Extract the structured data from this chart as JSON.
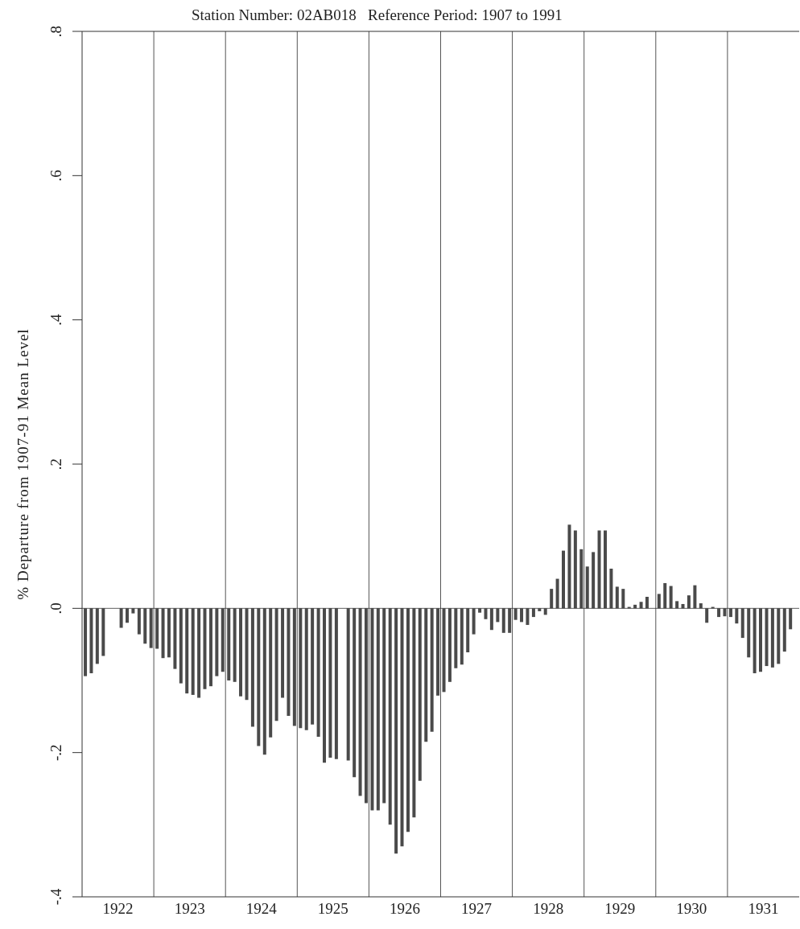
{
  "chart_data": {
    "type": "bar",
    "title": "Station Number: 02AB018   Reference Period: 1907 to 1991",
    "ylabel": "% Departure from 1907-91 Mean Level",
    "x": [
      1922.042,
      1922.125,
      1922.208,
      1922.292,
      1922.375,
      1922.458,
      1922.542,
      1922.625,
      1922.708,
      1922.792,
      1922.875,
      1922.958,
      1923.042,
      1923.125,
      1923.208,
      1923.292,
      1923.375,
      1923.458,
      1923.542,
      1923.625,
      1923.708,
      1923.792,
      1923.875,
      1923.958,
      1924.042,
      1924.125,
      1924.208,
      1924.292,
      1924.375,
      1924.458,
      1924.542,
      1924.625,
      1924.708,
      1924.792,
      1924.875,
      1924.958,
      1925.042,
      1925.125,
      1925.208,
      1925.292,
      1925.375,
      1925.458,
      1925.542,
      1925.625,
      1925.708,
      1925.792,
      1925.875,
      1925.958,
      1926.042,
      1926.125,
      1926.208,
      1926.292,
      1926.375,
      1926.458,
      1926.542,
      1926.625,
      1926.708,
      1926.792,
      1926.875,
      1926.958,
      1927.042,
      1927.125,
      1927.208,
      1927.292,
      1927.375,
      1927.458,
      1927.542,
      1927.625,
      1927.708,
      1927.792,
      1927.875,
      1927.958,
      1928.042,
      1928.125,
      1928.208,
      1928.292,
      1928.375,
      1928.458,
      1928.542,
      1928.625,
      1928.708,
      1928.792,
      1928.875,
      1928.958,
      1929.042,
      1929.125,
      1929.208,
      1929.292,
      1929.375,
      1929.458,
      1929.542,
      1929.625,
      1929.708,
      1929.792,
      1929.875,
      1929.958,
      1930.042,
      1930.125,
      1930.208,
      1930.292,
      1930.375,
      1930.458,
      1930.542,
      1930.625,
      1930.708,
      1930.792,
      1930.875,
      1930.958,
      1931.042,
      1931.125,
      1931.208,
      1931.292,
      1931.375,
      1931.458,
      1931.542,
      1931.625,
      1931.708,
      1931.792,
      1931.875
    ],
    "values": [
      -0.094,
      -0.09,
      -0.077,
      -0.066,
      null,
      null,
      -0.027,
      -0.02,
      -0.007,
      -0.036,
      -0.049,
      -0.055,
      -0.056,
      -0.069,
      -0.068,
      -0.084,
      -0.104,
      -0.118,
      -0.12,
      -0.124,
      -0.112,
      -0.108,
      -0.094,
      -0.088,
      -0.1,
      -0.102,
      -0.122,
      -0.127,
      -0.164,
      -0.191,
      -0.203,
      -0.179,
      -0.156,
      -0.124,
      -0.149,
      -0.163,
      -0.166,
      -0.169,
      -0.161,
      -0.178,
      -0.214,
      -0.207,
      -0.209,
      null,
      -0.211,
      -0.234,
      -0.26,
      -0.27,
      -0.28,
      -0.28,
      -0.27,
      -0.3,
      -0.34,
      -0.33,
      -0.31,
      -0.29,
      -0.239,
      -0.185,
      -0.171,
      -0.121,
      -0.116,
      -0.102,
      -0.083,
      -0.078,
      -0.061,
      -0.036,
      -0.006,
      -0.015,
      -0.03,
      -0.019,
      -0.034,
      -0.034,
      -0.016,
      -0.019,
      -0.023,
      -0.012,
      -0.004,
      -0.009,
      0.027,
      0.041,
      0.08,
      0.116,
      0.108,
      0.082,
      0.058,
      0.078,
      0.108,
      0.108,
      0.055,
      0.03,
      0.027,
      0.002,
      0.005,
      0.009,
      0.016,
      null,
      0.02,
      0.035,
      0.031,
      0.01,
      0.006,
      0.018,
      0.032,
      0.007,
      -0.02,
      0.002,
      -0.012,
      -0.011,
      -0.012,
      -0.021,
      -0.041,
      -0.068,
      -0.09,
      -0.088,
      -0.08,
      -0.082,
      -0.077,
      -0.06,
      -0.029
    ],
    "color": "#4a4a4a",
    "xlim": [
      1922,
      1932
    ],
    "xticks": [
      {
        "value": 1922.5,
        "label": "1922"
      },
      {
        "value": 1923.5,
        "label": "1923"
      },
      {
        "value": 1924.5,
        "label": "1924"
      },
      {
        "value": 1925.5,
        "label": "1925"
      },
      {
        "value": 1926.5,
        "label": "1926"
      },
      {
        "value": 1927.5,
        "label": "1927"
      },
      {
        "value": 1928.5,
        "label": "1928"
      },
      {
        "value": 1929.5,
        "label": "1929"
      },
      {
        "value": 1930.5,
        "label": "1930"
      },
      {
        "value": 1931.5,
        "label": "1931"
      }
    ],
    "ylim": [
      -0.4,
      0.8
    ],
    "yticks": [
      {
        "value": -0.4,
        "label": "-.4"
      },
      {
        "value": -0.2,
        "label": "-.2"
      },
      {
        "value": 0,
        "label": ".0"
      },
      {
        "value": 0.2,
        "label": ".2"
      },
      {
        "value": 0.4,
        "label": ".4"
      },
      {
        "value": 0.6,
        "label": ".6"
      },
      {
        "value": 0.8,
        "label": ".8"
      }
    ],
    "ref_lines": [
      {
        "axis": "x",
        "value": 1923
      },
      {
        "axis": "x",
        "value": 1924
      },
      {
        "axis": "x",
        "value": 1925
      },
      {
        "axis": "x",
        "value": 1926
      },
      {
        "axis": "x",
        "value": 1927
      },
      {
        "axis": "x",
        "value": 1928
      },
      {
        "axis": "x",
        "value": 1929
      },
      {
        "axis": "x",
        "value": 1930
      },
      {
        "axis": "x",
        "value": 1931
      },
      {
        "axis": "y",
        "value": 0
      }
    ],
    "grid": false,
    "legend": false
  }
}
